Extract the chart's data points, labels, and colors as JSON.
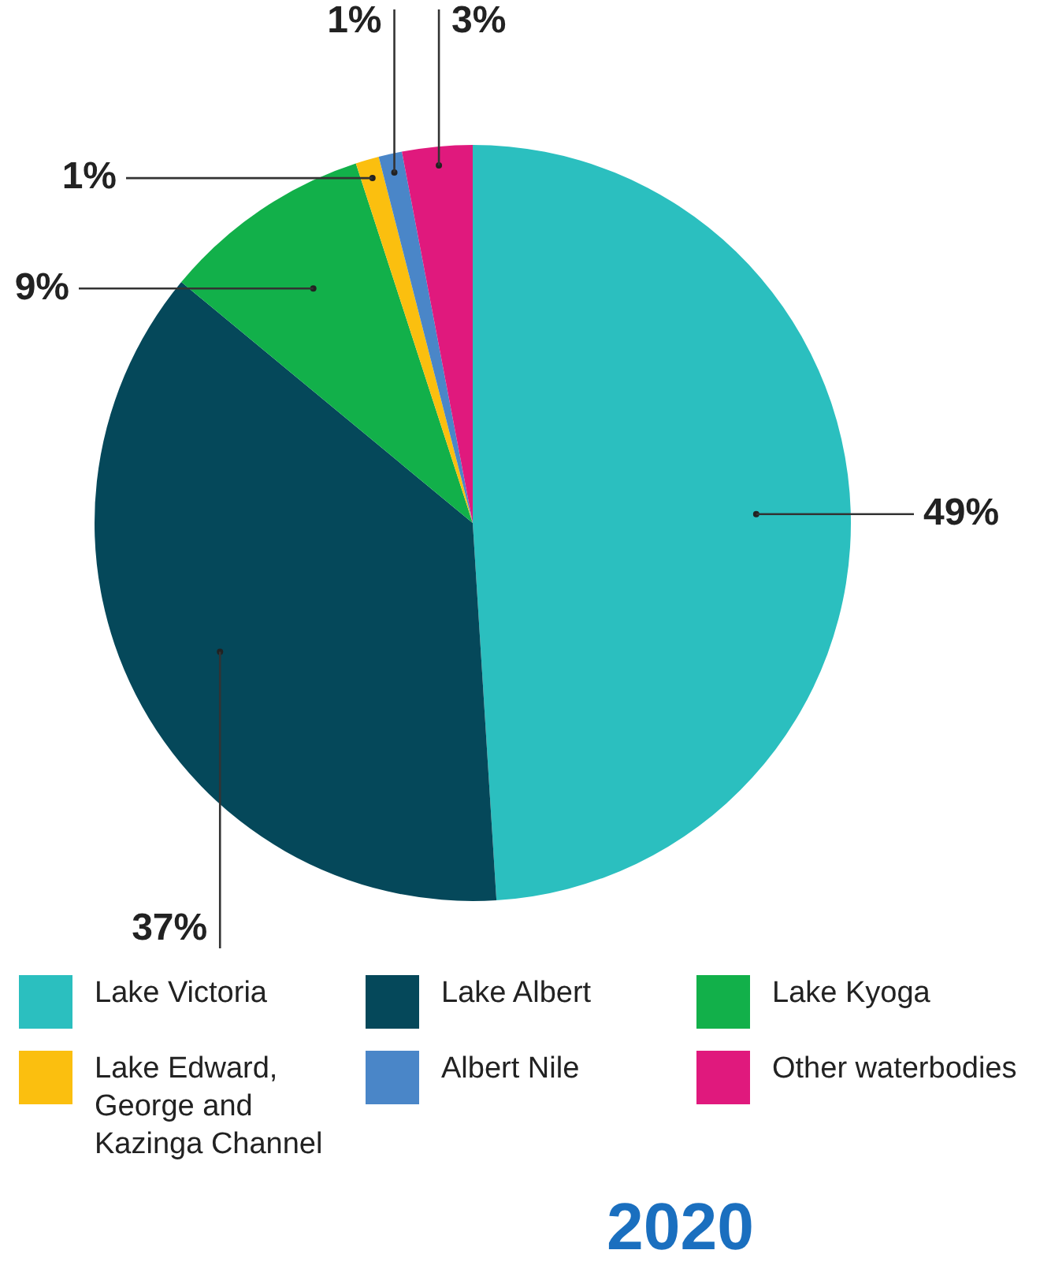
{
  "chart_data": {
    "type": "pie",
    "title": "2020",
    "categories": [
      "Lake Victoria",
      "Lake Albert",
      "Lake Kyoga",
      "Lake Edward, George and Kazinga Channel",
      "Albert Nile",
      "Other waterbodies"
    ],
    "values": [
      49,
      37,
      9,
      1,
      1,
      3
    ],
    "colors": [
      "#2bbfbf",
      "#05485a",
      "#12b04a",
      "#fbbf0f",
      "#4a86c8",
      "#e0197d"
    ],
    "value_labels": [
      "49%",
      "37%",
      "9%",
      "1%",
      "1%",
      "3%"
    ],
    "legend": "bottom"
  }
}
